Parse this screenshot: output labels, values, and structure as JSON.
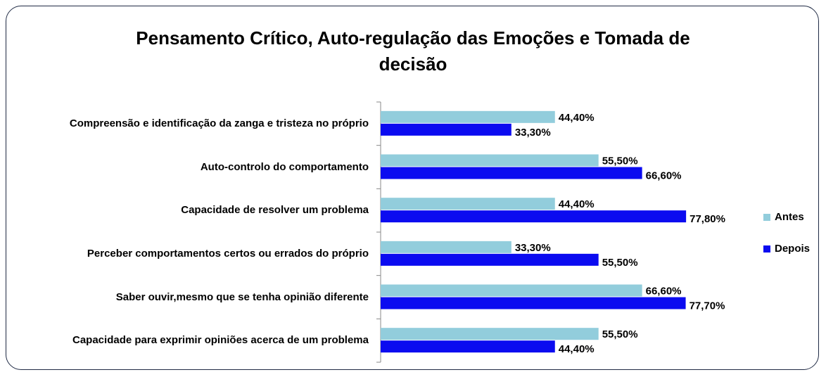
{
  "chart_data": {
    "type": "barh",
    "title": "Pensamento Crítico, Auto-regulação das Emoções e Tomada de decisão",
    "categories": [
      "Compreensão e identificação da zanga e tristeza no próprio",
      "Auto-controlo do comportamento",
      "Capacidade de resolver um problema",
      "Perceber comportamentos certos ou errados do próprio",
      "Saber ouvir,mesmo que se tenha opinião diferente",
      "Capacidade para exprimir opiniões acerca de um problema"
    ],
    "series": [
      {
        "name": "Antes",
        "color": "#92cddc",
        "values": [
          44.4,
          55.5,
          44.4,
          33.3,
          66.6,
          55.5
        ],
        "value_labels": [
          "44,40%",
          "55,50%",
          "44,40%",
          "33,30%",
          "66,60%",
          "55,50%"
        ]
      },
      {
        "name": "Depois",
        "color": "#0b0bf0",
        "values": [
          33.3,
          66.6,
          77.8,
          55.5,
          77.7,
          44.4
        ],
        "value_labels": [
          "33,30%",
          "66,60%",
          "77,80%",
          "55,50%",
          "77,70%",
          "44,40%"
        ]
      }
    ],
    "xlim": [
      0,
      100
    ],
    "legend": "right"
  }
}
